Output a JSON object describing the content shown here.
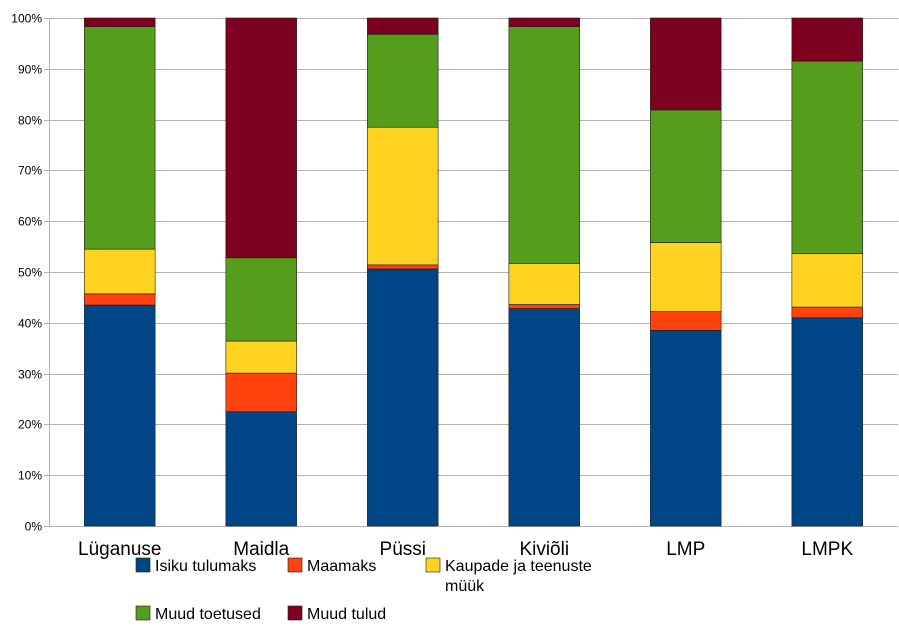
{
  "chart_data": {
    "type": "bar",
    "stacked": true,
    "categories": [
      "Lüganuse",
      "Maidla",
      "Püssi",
      "Kiviõli",
      "LMP",
      "LMPK"
    ],
    "series": [
      {
        "name": "Isiku tulumaks",
        "color": "#004586",
        "values": [
          43.5,
          22.5,
          50.6,
          42.8,
          38.5,
          41.0
        ]
      },
      {
        "name": "Maamaks",
        "color": "#ff420e",
        "values": [
          2.2,
          7.6,
          0.8,
          0.8,
          3.7,
          2.1
        ]
      },
      {
        "name": "Kaupade ja teenuste müük",
        "name_lines": [
          "Kaupade ja teenuste",
          "müük"
        ],
        "color": "#ffd320",
        "values": [
          8.8,
          6.3,
          27.1,
          8.1,
          13.6,
          10.5
        ]
      },
      {
        "name": "Muud toetused",
        "color": "#579d1c",
        "values": [
          43.8,
          16.4,
          18.3,
          46.6,
          26.1,
          37.9
        ]
      },
      {
        "name": "Muud tulud",
        "color": "#7e0021",
        "values": [
          1.7,
          47.2,
          3.2,
          1.7,
          18.1,
          8.5
        ]
      }
    ],
    "y_ticks": [
      "0%",
      "10%",
      "20%",
      "30%",
      "40%",
      "50%",
      "60%",
      "70%",
      "80%",
      "90%",
      "100%"
    ],
    "ylim": [
      0,
      100
    ],
    "grid": true,
    "legend_position": "bottom"
  }
}
